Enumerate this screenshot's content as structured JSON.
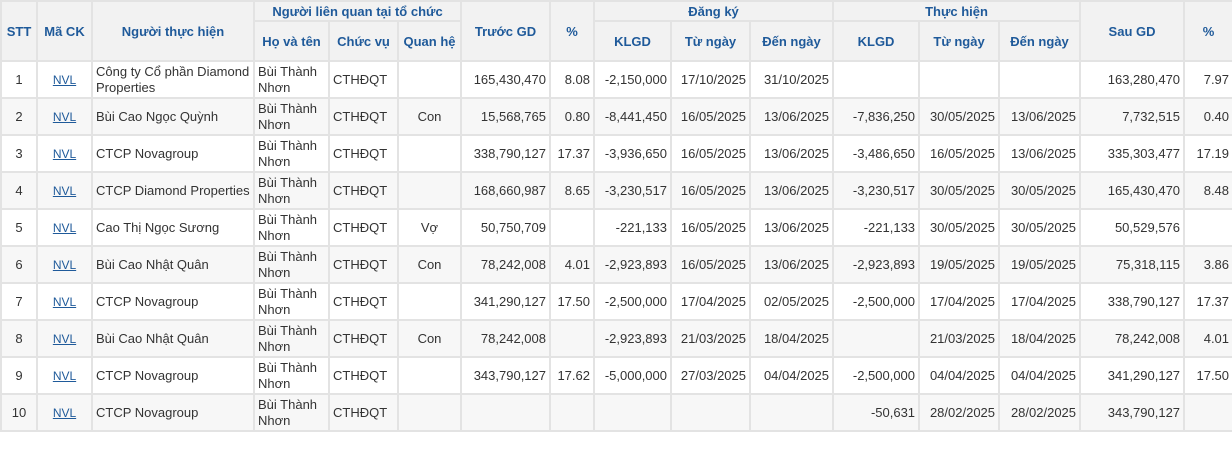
{
  "headers": {
    "stt": "STT",
    "ma_ck": "Mã CK",
    "nguoi_thuc_hien": "Người thực hiện",
    "nguoi_lien_quan": "Người liên quan tại tổ chức",
    "ho_ten": "Họ và tên",
    "chuc_vu": "Chức vụ",
    "quan_he": "Quan hệ",
    "truoc_gd": "Trước GD",
    "pct1": "%",
    "dang_ky": "Đăng ký",
    "thuc_hien": "Thực hiện",
    "klgd1": "KLGD",
    "tu_ngay1": "Từ ngày",
    "den_ngay1": "Đến ngày",
    "klgd2": "KLGD",
    "tu_ngay2": "Từ ngày",
    "den_ngay2": "Đến ngày",
    "sau_gd": "Sau GD",
    "pct2": "%"
  },
  "rows": [
    {
      "stt": "1",
      "ma": "NVL",
      "nguoi": "Công ty Cổ phần Diamond Properties",
      "ho_ten": "Bùi Thành Nhơn",
      "chuc_vu": "CTHĐQT",
      "quan_he": "",
      "truoc": "165,430,470",
      "pct1": "8.08",
      "dk_kl": "-2,150,000",
      "dk_tu": "17/10/2025",
      "dk_den": "31/10/2025",
      "th_kl": "",
      "th_tu": "",
      "th_den": "",
      "sau": "163,280,470",
      "pct2": "7.97"
    },
    {
      "stt": "2",
      "ma": "NVL",
      "nguoi": "Bùi Cao Ngọc Quỳnh",
      "ho_ten": "Bùi Thành Nhơn",
      "chuc_vu": "CTHĐQT",
      "quan_he": "Con",
      "truoc": "15,568,765",
      "pct1": "0.80",
      "dk_kl": "-8,441,450",
      "dk_tu": "16/05/2025",
      "dk_den": "13/06/2025",
      "th_kl": "-7,836,250",
      "th_tu": "30/05/2025",
      "th_den": "13/06/2025",
      "sau": "7,732,515",
      "pct2": "0.40"
    },
    {
      "stt": "3",
      "ma": "NVL",
      "nguoi": "CTCP Novagroup",
      "ho_ten": "Bùi Thành Nhơn",
      "chuc_vu": "CTHĐQT",
      "quan_he": "",
      "truoc": "338,790,127",
      "pct1": "17.37",
      "dk_kl": "-3,936,650",
      "dk_tu": "16/05/2025",
      "dk_den": "13/06/2025",
      "th_kl": "-3,486,650",
      "th_tu": "16/05/2025",
      "th_den": "13/06/2025",
      "sau": "335,303,477",
      "pct2": "17.19"
    },
    {
      "stt": "4",
      "ma": "NVL",
      "nguoi": "CTCP Diamond Properties",
      "ho_ten": "Bùi Thành Nhơn",
      "chuc_vu": "CTHĐQT",
      "quan_he": "",
      "truoc": "168,660,987",
      "pct1": "8.65",
      "dk_kl": "-3,230,517",
      "dk_tu": "16/05/2025",
      "dk_den": "13/06/2025",
      "th_kl": "-3,230,517",
      "th_tu": "30/05/2025",
      "th_den": "30/05/2025",
      "sau": "165,430,470",
      "pct2": "8.48"
    },
    {
      "stt": "5",
      "ma": "NVL",
      "nguoi": "Cao Thị Ngọc Sương",
      "ho_ten": "Bùi Thành Nhơn",
      "chuc_vu": "CTHĐQT",
      "quan_he": "Vợ",
      "truoc": "50,750,709",
      "pct1": "",
      "dk_kl": "-221,133",
      "dk_tu": "16/05/2025",
      "dk_den": "13/06/2025",
      "th_kl": "-221,133",
      "th_tu": "30/05/2025",
      "th_den": "30/05/2025",
      "sau": "50,529,576",
      "pct2": ""
    },
    {
      "stt": "6",
      "ma": "NVL",
      "nguoi": "Bùi Cao Nhật Quân",
      "ho_ten": "Bùi Thành Nhơn",
      "chuc_vu": "CTHĐQT",
      "quan_he": "Con",
      "truoc": "78,242,008",
      "pct1": "4.01",
      "dk_kl": "-2,923,893",
      "dk_tu": "16/05/2025",
      "dk_den": "13/06/2025",
      "th_kl": "-2,923,893",
      "th_tu": "19/05/2025",
      "th_den": "19/05/2025",
      "sau": "75,318,115",
      "pct2": "3.86"
    },
    {
      "stt": "7",
      "ma": "NVL",
      "nguoi": "CTCP Novagroup",
      "ho_ten": "Bùi Thành Nhơn",
      "chuc_vu": "CTHĐQT",
      "quan_he": "",
      "truoc": "341,290,127",
      "pct1": "17.50",
      "dk_kl": "-2,500,000",
      "dk_tu": "17/04/2025",
      "dk_den": "02/05/2025",
      "th_kl": "-2,500,000",
      "th_tu": "17/04/2025",
      "th_den": "17/04/2025",
      "sau": "338,790,127",
      "pct2": "17.37"
    },
    {
      "stt": "8",
      "ma": "NVL",
      "nguoi": "Bùi Cao Nhật Quân",
      "ho_ten": "Bùi Thành Nhơn",
      "chuc_vu": "CTHĐQT",
      "quan_he": "Con",
      "truoc": "78,242,008",
      "pct1": "",
      "dk_kl": "-2,923,893",
      "dk_tu": "21/03/2025",
      "dk_den": "18/04/2025",
      "th_kl": "",
      "th_tu": "21/03/2025",
      "th_den": "18/04/2025",
      "sau": "78,242,008",
      "pct2": "4.01"
    },
    {
      "stt": "9",
      "ma": "NVL",
      "nguoi": "CTCP Novagroup",
      "ho_ten": "Bùi Thành Nhơn",
      "chuc_vu": "CTHĐQT",
      "quan_he": "",
      "truoc": "343,790,127",
      "pct1": "17.62",
      "dk_kl": "-5,000,000",
      "dk_tu": "27/03/2025",
      "dk_den": "04/04/2025",
      "th_kl": "-2,500,000",
      "th_tu": "04/04/2025",
      "th_den": "04/04/2025",
      "sau": "341,290,127",
      "pct2": "17.50"
    },
    {
      "stt": "10",
      "ma": "NVL",
      "nguoi": "CTCP Novagroup",
      "ho_ten": "Bùi Thành Nhơn",
      "chuc_vu": "CTHĐQT",
      "quan_he": "",
      "truoc": "",
      "pct1": "",
      "dk_kl": "",
      "dk_tu": "",
      "dk_den": "",
      "th_kl": "-50,631",
      "th_tu": "28/02/2025",
      "th_den": "28/02/2025",
      "sau": "343,790,127",
      "pct2": ""
    }
  ]
}
